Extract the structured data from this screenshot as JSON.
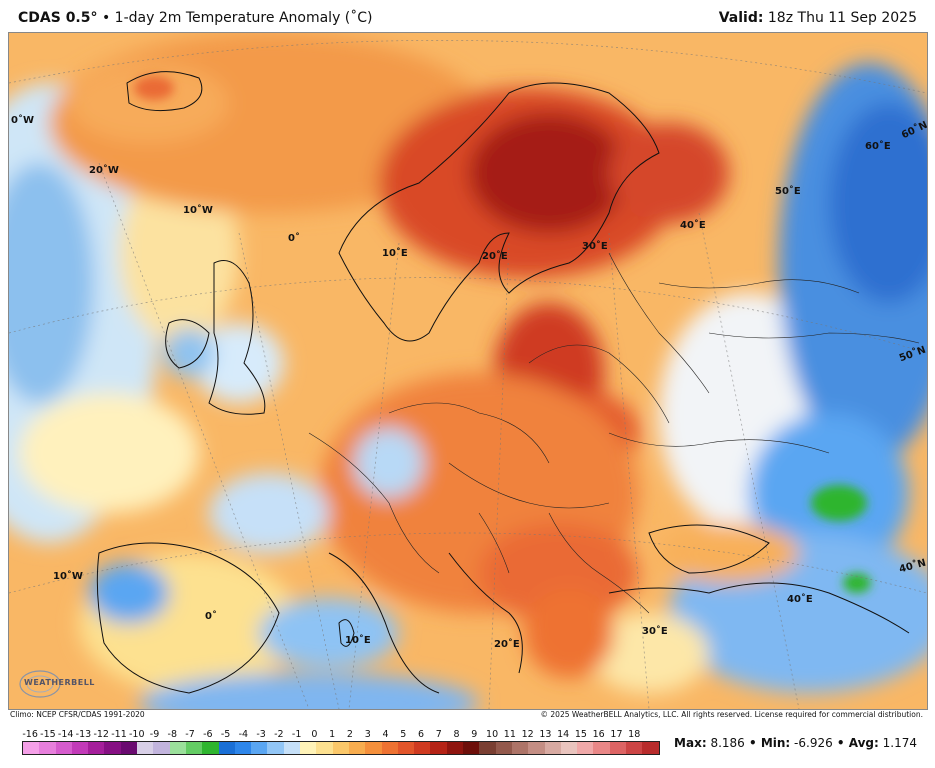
{
  "header": {
    "model": "CDAS 0.5°",
    "product": " • 1-day 2m Temperature Anomaly (˚C)",
    "valid_label": "Valid:",
    "valid_time": " 18z Thu 11 Sep 2025"
  },
  "grid_labels": {
    "lon_0w_edge": "0˚W",
    "lon_20w": "20˚W",
    "lon_10w_top": "10˚W",
    "lon_0_top": "0˚",
    "lon_10e_top": "10˚E",
    "lon_20e_top": "20˚E",
    "lon_30e_top": "30˚E",
    "lon_40e_top": "40˚E",
    "lon_50e": "50˚E",
    "lat_60e": "60˚E",
    "lat_60n": "60˚N",
    "lat_50n": "50˚N",
    "lat_40n": "40˚N",
    "lon_10w_bottom": "10˚W",
    "lon_0_bottom": "0˚",
    "lon_10e_bottom": "10˚E",
    "lon_20e_bottom": "20˚E",
    "lon_30e_bottom": "30˚E",
    "lon_40e_bottom": "40˚E"
  },
  "logo": "WEATHERBELL",
  "footer": {
    "climo": "Climo: NCEP CFSR/CDAS 1991-2020",
    "copyright": "© 2025 WeatherBELL Analytics, LLC. All rights reserved. License required for commercial distribution."
  },
  "colorbar": {
    "labels": [
      "-16",
      "-15",
      "-14",
      "-13",
      "-12",
      "-11",
      "-10",
      "-9",
      "-8",
      "-7",
      "-6",
      "-5",
      "-4",
      "-3",
      "-2",
      "-1",
      "0",
      "1",
      "2",
      "3",
      "4",
      "5",
      "6",
      "7",
      "8",
      "9",
      "10",
      "11",
      "12",
      "13",
      "14",
      "15",
      "16",
      "17",
      "18"
    ],
    "colors": [
      "#f5a0e8",
      "#e77fdc",
      "#d65ccd",
      "#c23ab8",
      "#a51f9b",
      "#861083",
      "#6a0a70",
      "#d8cfe7",
      "#c2b4dd",
      "#9be09b",
      "#64cc64",
      "#2fb52f",
      "#1a6fd6",
      "#2e86ea",
      "#5aa6f2",
      "#92c6f6",
      "#c6e0f8",
      "#fff3b8",
      "#fde190",
      "#fbc86a",
      "#f8ad4f",
      "#f5903c",
      "#ee7232",
      "#e2552a",
      "#cf3a20",
      "#b52316",
      "#8f150f",
      "#6d0f0a",
      "#7a3f32",
      "#93594c",
      "#ad7468",
      "#c48e84",
      "#d8aaa2",
      "#e9c4be",
      "#f0a9a9",
      "#e98787",
      "#dd6464",
      "#cc4545",
      "#b82c2c"
    ]
  },
  "stats": {
    "max_label": "Max:",
    "max": " 8.186",
    "min_label": " • Min:",
    "min": " -6.926",
    "avg_label": " • Avg:",
    "avg": " 1.174"
  }
}
